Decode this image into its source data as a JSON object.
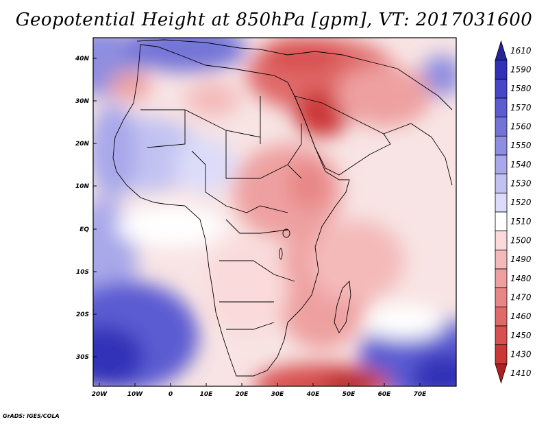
{
  "title": "Geopotential Height at 850hPa [gpm], VT: 2017031600",
  "credit": "GrADS: IGES/COLA",
  "lat_labels": [
    "40N",
    "30N",
    "20N",
    "10N",
    "EQ",
    "10S",
    "20S",
    "30S"
  ],
  "lon_labels": [
    "20W",
    "10W",
    "0",
    "10E",
    "20E",
    "30E",
    "40E",
    "50E",
    "60E",
    "70E"
  ],
  "colorbar": {
    "levels": [
      "1610",
      "1590",
      "1580",
      "1570",
      "1560",
      "1550",
      "1540",
      "1530",
      "1520",
      "1510",
      "1500",
      "1490",
      "1480",
      "1470",
      "1460",
      "1450",
      "1430",
      "1410"
    ],
    "colors": [
      "#23239c",
      "#3030b8",
      "#4646c8",
      "#5c5cd2",
      "#7474d8",
      "#8e8ee0",
      "#a8a8ea",
      "#c2c2f2",
      "#dcdcfa",
      "#ffffff",
      "#fadada",
      "#f4baba",
      "#eea0a0",
      "#e88686",
      "#e06a6a",
      "#d85050",
      "#cc3838",
      "#b02020"
    ]
  }
}
